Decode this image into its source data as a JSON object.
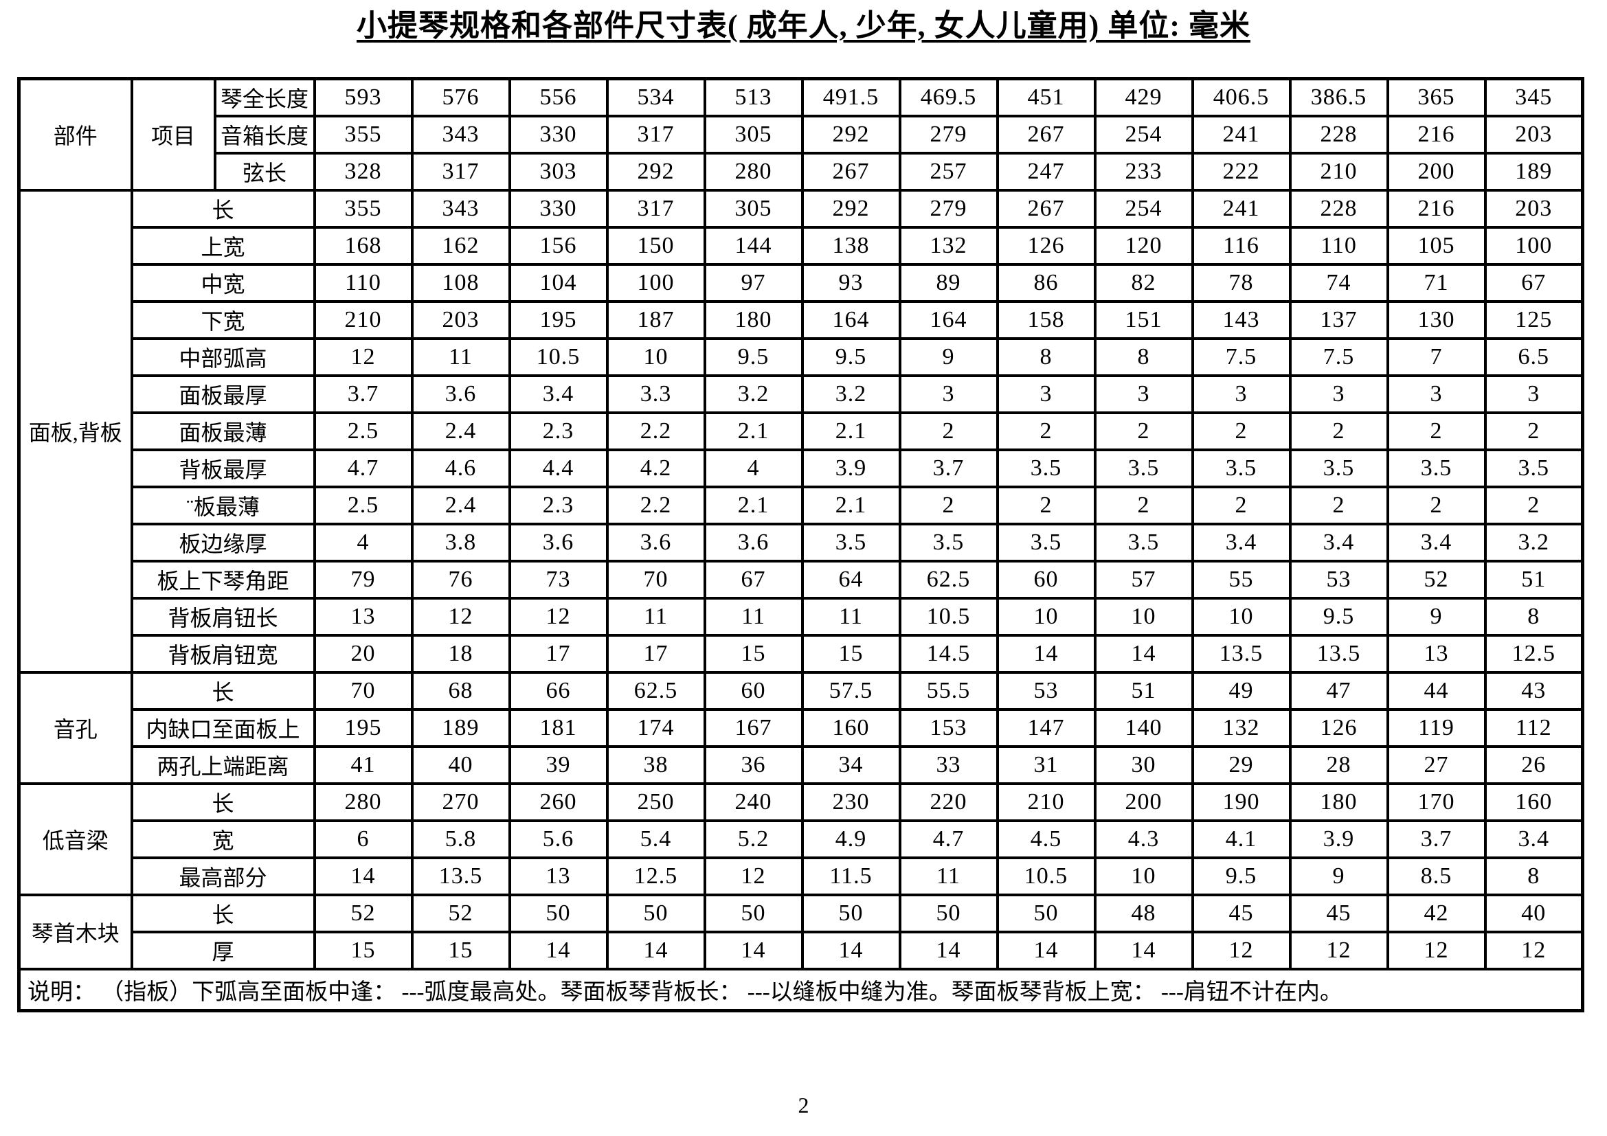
{
  "title": "小提琴规格和各部件尺寸表( 成年人, 少年, 女人儿童用) 单位: 毫米",
  "page_number": "2",
  "table": {
    "corner": {
      "parts": "部件",
      "items": "项目"
    },
    "header_rows": [
      {
        "label": "琴全长度",
        "values": [
          "593",
          "576",
          "556",
          "534",
          "513",
          "491.5",
          "469.5",
          "451",
          "429",
          "406.5",
          "386.5",
          "365",
          "345"
        ]
      },
      {
        "label": "音箱长度",
        "values": [
          "355",
          "343",
          "330",
          "317",
          "305",
          "292",
          "279",
          "267",
          "254",
          "241",
          "228",
          "216",
          "203"
        ]
      },
      {
        "label": "弦长",
        "values": [
          "328",
          "317",
          "303",
          "292",
          "280",
          "267",
          "257",
          "247",
          "233",
          "222",
          "210",
          "200",
          "189"
        ]
      }
    ],
    "sections": [
      {
        "name": "面板,背板",
        "rows": [
          {
            "label": "长",
            "values": [
              "355",
              "343",
              "330",
              "317",
              "305",
              "292",
              "279",
              "267",
              "254",
              "241",
              "228",
              "216",
              "203"
            ]
          },
          {
            "label": "上宽",
            "values": [
              "168",
              "162",
              "156",
              "150",
              "144",
              "138",
              "132",
              "126",
              "120",
              "116",
              "110",
              "105",
              "100"
            ]
          },
          {
            "label": "中宽",
            "values": [
              "110",
              "108",
              "104",
              "100",
              "97",
              "93",
              "89",
              "86",
              "82",
              "78",
              "74",
              "71",
              "67"
            ]
          },
          {
            "label": "下宽",
            "values": [
              "210",
              "203",
              "195",
              "187",
              "180",
              "164",
              "164",
              "158",
              "151",
              "143",
              "137",
              "130",
              "125"
            ]
          },
          {
            "label": "中部弧高",
            "values": [
              "12",
              "11",
              "10.5",
              "10",
              "9.5",
              "9.5",
              "9",
              "8",
              "8",
              "7.5",
              "7.5",
              "7",
              "6.5"
            ]
          },
          {
            "label": "面板最厚",
            "values": [
              "3.7",
              "3.6",
              "3.4",
              "3.3",
              "3.2",
              "3.2",
              "3",
              "3",
              "3",
              "3",
              "3",
              "3",
              "3"
            ]
          },
          {
            "label": "面板最薄",
            "values": [
              "2.5",
              "2.4",
              "2.3",
              "2.2",
              "2.1",
              "2.1",
              "2",
              "2",
              "2",
              "2",
              "2",
              "2",
              "2"
            ]
          },
          {
            "label": "背板最厚",
            "values": [
              "4.7",
              "4.6",
              "4.4",
              "4.2",
              "4",
              "3.9",
              "3.7",
              "3.5",
              "3.5",
              "3.5",
              "3.5",
              "3.5",
              "3.5"
            ]
          },
          {
            "label": "¨板最薄",
            "values": [
              "2.5",
              "2.4",
              "2.3",
              "2.2",
              "2.1",
              "2.1",
              "2",
              "2",
              "2",
              "2",
              "2",
              "2",
              "2"
            ]
          },
          {
            "label": "板边缘厚",
            "values": [
              "4",
              "3.8",
              "3.6",
              "3.6",
              "3.6",
              "3.5",
              "3.5",
              "3.5",
              "3.5",
              "3.4",
              "3.4",
              "3.4",
              "3.2"
            ]
          },
          {
            "label": "板上下琴角距",
            "values": [
              "79",
              "76",
              "73",
              "70",
              "67",
              "64",
              "62.5",
              "60",
              "57",
              "55",
              "53",
              "52",
              "51"
            ]
          },
          {
            "label": "背板肩钮长",
            "values": [
              "13",
              "12",
              "12",
              "11",
              "11",
              "11",
              "10.5",
              "10",
              "10",
              "10",
              "9.5",
              "9",
              "8"
            ]
          },
          {
            "label": "背板肩钮宽",
            "values": [
              "20",
              "18",
              "17",
              "17",
              "15",
              "15",
              "14.5",
              "14",
              "14",
              "13.5",
              "13.5",
              "13",
              "12.5"
            ]
          }
        ]
      },
      {
        "name": "音孔",
        "rows": [
          {
            "label": "长",
            "values": [
              "70",
              "68",
              "66",
              "62.5",
              "60",
              "57.5",
              "55.5",
              "53",
              "51",
              "49",
              "47",
              "44",
              "43"
            ]
          },
          {
            "label": "内缺口至面板上",
            "values": [
              "195",
              "189",
              "181",
              "174",
              "167",
              "160",
              "153",
              "147",
              "140",
              "132",
              "126",
              "119",
              "112"
            ]
          },
          {
            "label": "两孔上端距离",
            "values": [
              "41",
              "40",
              "39",
              "38",
              "36",
              "34",
              "33",
              "31",
              "30",
              "29",
              "28",
              "27",
              "26"
            ]
          }
        ]
      },
      {
        "name": "低音梁",
        "rows": [
          {
            "label": "长",
            "values": [
              "280",
              "270",
              "260",
              "250",
              "240",
              "230",
              "220",
              "210",
              "200",
              "190",
              "180",
              "170",
              "160"
            ]
          },
          {
            "label": "宽",
            "values": [
              "6",
              "5.8",
              "5.6",
              "5.4",
              "5.2",
              "4.9",
              "4.7",
              "4.5",
              "4.3",
              "4.1",
              "3.9",
              "3.7",
              "3.4"
            ]
          },
          {
            "label": "最高部分",
            "values": [
              "14",
              "13.5",
              "13",
              "12.5",
              "12",
              "11.5",
              "11",
              "10.5",
              "10",
              "9.5",
              "9",
              "8.5",
              "8"
            ]
          }
        ]
      },
      {
        "name": "琴首木块",
        "rows": [
          {
            "label": "长",
            "values": [
              "52",
              "52",
              "50",
              "50",
              "50",
              "50",
              "50",
              "50",
              "48",
              "45",
              "45",
              "42",
              "40"
            ]
          },
          {
            "label": "厚",
            "values": [
              "15",
              "15",
              "14",
              "14",
              "14",
              "14",
              "14",
              "14",
              "14",
              "12",
              "12",
              "12",
              "12"
            ]
          }
        ]
      }
    ],
    "note": "说明： （指板）下弧高至面板中逢： ---弧度最高处。琴面板琴背板长： ---以缝板中缝为准。琴面板琴背板上宽： ---肩钮不计在内。"
  }
}
